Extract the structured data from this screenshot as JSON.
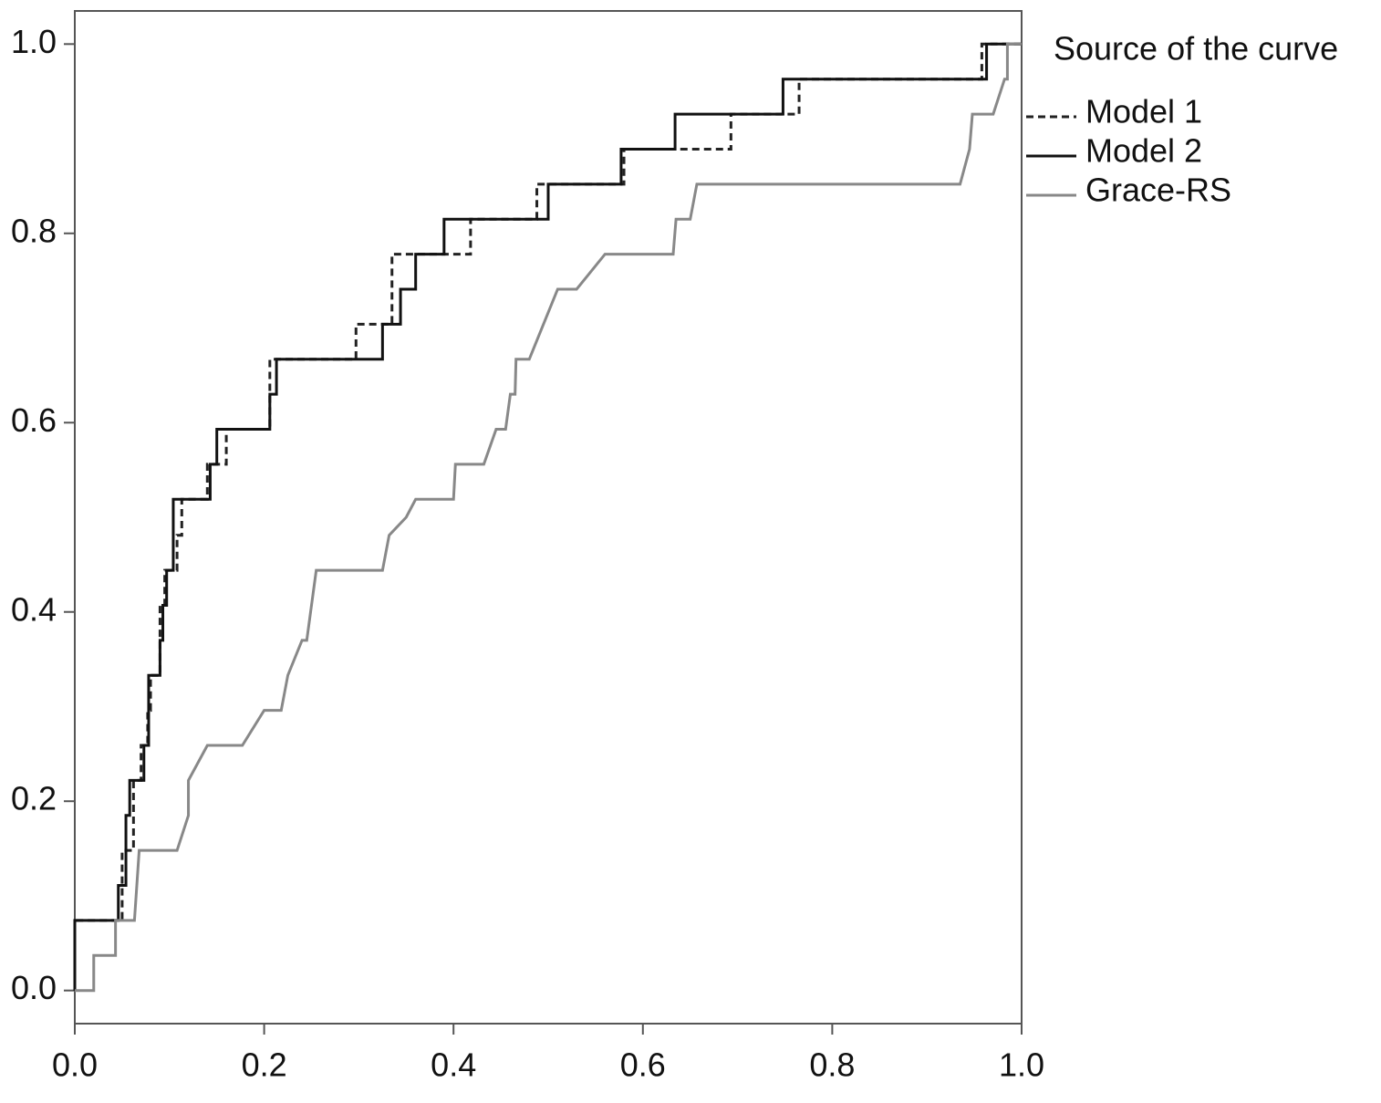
{
  "chart_data": {
    "type": "line",
    "legend_title": "Source of the curve",
    "legend_position": "right",
    "xlim": [
      0,
      1
    ],
    "ylim": [
      -0.035,
      1.035
    ],
    "xticks": [
      {
        "value": 0,
        "label": "0.0"
      },
      0.2,
      0.4,
      0.6,
      0.8,
      {
        "value": 1,
        "label": "1.0"
      }
    ],
    "yticks": [
      {
        "value": 0,
        "label": "0.0"
      },
      0.2,
      0.4,
      0.6,
      0.8,
      {
        "value": 1,
        "label": "1.0"
      }
    ],
    "series": [
      {
        "name": "Model 1",
        "color": "#222222",
        "dash": true,
        "x": [
          0,
          0,
          0.05,
          0.05,
          0.062,
          0.062,
          0.07,
          0.07,
          0.077,
          0.077,
          0.08,
          0.08,
          0.09,
          0.09,
          0.095,
          0.095,
          0.108,
          0.108,
          0.113,
          0.113,
          0.14,
          0.14,
          0.16,
          0.16,
          0.206,
          0.206,
          0.297,
          0.297,
          0.335,
          0.335,
          0.418,
          0.418,
          0.488,
          0.488,
          0.58,
          0.58,
          0.693,
          0.693,
          0.765,
          0.765,
          0.958,
          0.958,
          1
        ],
        "y": [
          0,
          0.074,
          0.074,
          0.148,
          0.148,
          0.222,
          0.222,
          0.259,
          0.259,
          0.296,
          0.296,
          0.333,
          0.333,
          0.407,
          0.407,
          0.444,
          0.444,
          0.481,
          0.481,
          0.519,
          0.519,
          0.556,
          0.556,
          0.593,
          0.593,
          0.667,
          0.667,
          0.704,
          0.704,
          0.778,
          0.778,
          0.815,
          0.815,
          0.852,
          0.852,
          0.889,
          0.889,
          0.926,
          0.926,
          0.963,
          0.963,
          1,
          1
        ]
      },
      {
        "name": "Model 2",
        "color": "#111111",
        "dash": false,
        "x": [
          0,
          0,
          0.046,
          0.046,
          0.054,
          0.054,
          0.058,
          0.058,
          0.073,
          0.073,
          0.078,
          0.078,
          0.09,
          0.09,
          0.093,
          0.093,
          0.097,
          0.097,
          0.104,
          0.104,
          0.143,
          0.143,
          0.15,
          0.15,
          0.206,
          0.206,
          0.213,
          0.213,
          0.325,
          0.325,
          0.344,
          0.344,
          0.36,
          0.36,
          0.39,
          0.39,
          0.5,
          0.5,
          0.577,
          0.577,
          0.634,
          0.634,
          0.748,
          0.748,
          0.963,
          0.963,
          1
        ],
        "y": [
          0,
          0.074,
          0.074,
          0.111,
          0.111,
          0.185,
          0.185,
          0.222,
          0.222,
          0.259,
          0.259,
          0.333,
          0.333,
          0.37,
          0.37,
          0.407,
          0.407,
          0.444,
          0.444,
          0.519,
          0.519,
          0.556,
          0.556,
          0.593,
          0.593,
          0.63,
          0.63,
          0.667,
          0.667,
          0.704,
          0.704,
          0.741,
          0.741,
          0.778,
          0.778,
          0.815,
          0.815,
          0.852,
          0.852,
          0.889,
          0.889,
          0.926,
          0.926,
          0.963,
          0.963,
          1,
          1
        ]
      },
      {
        "name": "Grace-RS",
        "color": "#888888",
        "dash": false,
        "x": [
          0,
          0.02,
          0.02,
          0.043,
          0.043,
          0.063,
          0.068,
          0.108,
          0.12,
          0.12,
          0.14,
          0.177,
          0.2,
          0.218,
          0.225,
          0.24,
          0.245,
          0.255,
          0.325,
          0.332,
          0.35,
          0.36,
          0.4,
          0.402,
          0.432,
          0.445,
          0.455,
          0.46,
          0.465,
          0.466,
          0.48,
          0.51,
          0.53,
          0.56,
          0.632,
          0.635,
          0.65,
          0.657,
          0.935,
          0.945,
          0.948,
          0.97,
          0.982,
          0.985,
          0.985,
          1
        ],
        "y": [
          0,
          0,
          0.037,
          0.037,
          0.074,
          0.074,
          0.148,
          0.148,
          0.185,
          0.222,
          0.259,
          0.259,
          0.296,
          0.296,
          0.333,
          0.37,
          0.37,
          0.444,
          0.444,
          0.481,
          0.5,
          0.519,
          0.519,
          0.556,
          0.556,
          0.593,
          0.593,
          0.63,
          0.63,
          0.667,
          0.667,
          0.741,
          0.741,
          0.778,
          0.778,
          0.815,
          0.815,
          0.852,
          0.852,
          0.889,
          0.926,
          0.926,
          0.963,
          0.963,
          1,
          1
        ]
      }
    ]
  }
}
